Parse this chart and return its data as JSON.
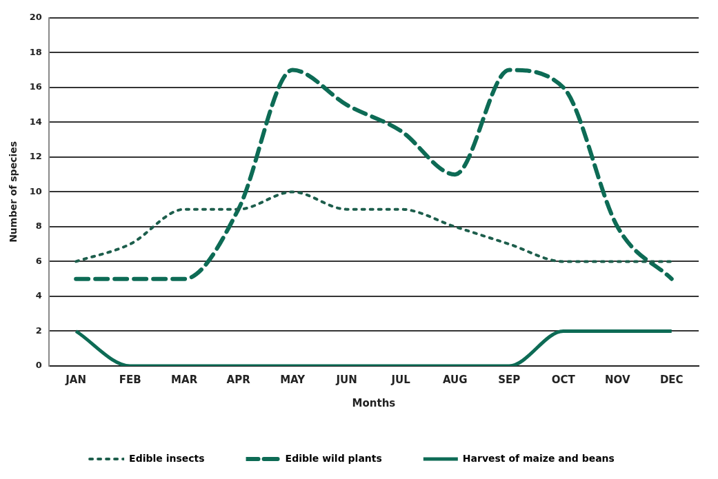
{
  "chart_data": {
    "type": "line",
    "xlabel": "Months",
    "ylabel": "Number of species",
    "categories": [
      "JAN",
      "FEB",
      "MAR",
      "APR",
      "MAY",
      "JUN",
      "JUL",
      "AUG",
      "SEP",
      "OCT",
      "NOV",
      "DEC"
    ],
    "series": [
      {
        "name": "Edible insects",
        "color": "#1d5e4c",
        "line_style": "dotted",
        "values": [
          6,
          7,
          9,
          9,
          10,
          9,
          9,
          8,
          7,
          6,
          6,
          6
        ]
      },
      {
        "name": "Edible wild plants",
        "color": "#0d6b55",
        "line_style": "dashed",
        "values": [
          5,
          5,
          5,
          9,
          17,
          15,
          13.5,
          11,
          17,
          16,
          8,
          5
        ]
      },
      {
        "name": "Harvest of maize and beans",
        "color": "#0d6b55",
        "line_style": "solid",
        "values": [
          2,
          0,
          0,
          0,
          0,
          0,
          0,
          0,
          0,
          2,
          2,
          2
        ]
      }
    ],
    "ylim": [
      0,
      20
    ],
    "yticks": [
      0,
      2,
      4,
      6,
      8,
      10,
      12,
      14,
      16,
      18,
      20
    ],
    "grid": "y",
    "legend": "bottom",
    "marker": "none"
  }
}
